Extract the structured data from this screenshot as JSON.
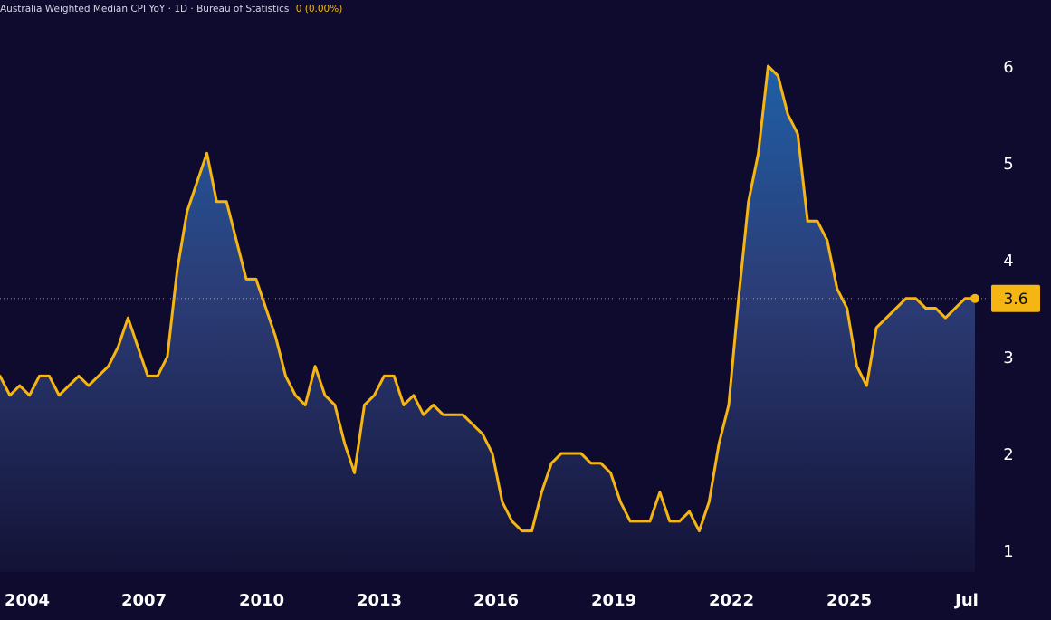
{
  "header": {
    "title": "Australia Weighted Median CPI YoY · 1D · Bureau of Statistics",
    "change": "0 (0.00%)"
  },
  "colors": {
    "background": "#0e0b2e",
    "line": "#f5b513",
    "area_top": "#1f5fa6",
    "area_bottom": "#131236",
    "badge": "#f5b513"
  },
  "chart_data": {
    "type": "area",
    "title": "Australia Weighted Median CPI YoY",
    "y_ticks": [
      1,
      2,
      3,
      4,
      5,
      6
    ],
    "x_ticks": [
      "2004",
      "2007",
      "2010",
      "2013",
      "2016",
      "2019",
      "2022",
      "2025",
      "Jul"
    ],
    "last_value_label": "3.6",
    "series": [
      {
        "x": [
          2003.0,
          2003.25,
          2003.5,
          2003.75,
          2004.0,
          2004.25,
          2004.5,
          2004.75,
          2005.0,
          2005.25,
          2005.5,
          2005.75,
          2006.0,
          2006.25,
          2006.5,
          2006.75,
          2007.0,
          2007.25,
          2007.5,
          2007.75,
          2008.0,
          2008.25,
          2008.5,
          2008.75,
          2009.0,
          2009.25,
          2009.5,
          2009.75,
          2010.0,
          2010.25,
          2010.5,
          2010.75,
          2011.0,
          2011.25,
          2011.5,
          2011.75,
          2012.0,
          2012.25,
          2012.5,
          2012.75,
          2013.0,
          2013.25,
          2013.5,
          2013.75,
          2014.0,
          2014.25,
          2014.5,
          2014.75,
          2015.0,
          2015.25,
          2015.5,
          2015.75,
          2016.0,
          2016.25,
          2016.5,
          2016.75,
          2017.0,
          2017.25,
          2017.5,
          2017.75,
          2018.0,
          2018.25,
          2018.5,
          2018.75,
          2019.0,
          2019.25,
          2019.5,
          2019.75,
          2020.0,
          2020.25,
          2020.5,
          2020.75,
          2021.0,
          2021.25,
          2021.5,
          2021.75,
          2022.0,
          2022.25,
          2022.5,
          2022.75,
          2023.0,
          2023.25,
          2023.5,
          2023.75,
          2024.0,
          2024.25,
          2024.5,
          2024.75,
          2025.0,
          2025.25,
          2025.5,
          2025.75,
          2026.0,
          2026.25,
          2026.5,
          2026.75,
          2027.0,
          2027.25,
          2027.5,
          2027.75
        ],
        "y": [
          2.8,
          2.6,
          2.7,
          2.6,
          2.8,
          2.8,
          2.6,
          2.7,
          2.8,
          2.7,
          2.8,
          2.9,
          3.1,
          3.4,
          3.1,
          2.8,
          2.8,
          3.0,
          3.9,
          4.5,
          4.8,
          5.1,
          4.6,
          4.6,
          4.2,
          3.8,
          3.8,
          3.5,
          3.2,
          2.8,
          2.6,
          2.5,
          2.9,
          2.6,
          2.5,
          2.1,
          1.8,
          2.5,
          2.6,
          2.8,
          2.8,
          2.5,
          2.6,
          2.4,
          2.5,
          2.4,
          2.4,
          2.4,
          2.3,
          2.2,
          2.0,
          1.5,
          1.3,
          1.2,
          1.2,
          1.6,
          1.9,
          2.0,
          2.0,
          2.0,
          1.9,
          1.9,
          1.8,
          1.5,
          1.3,
          1.3,
          1.3,
          1.6,
          1.3,
          1.3,
          1.4,
          1.2,
          1.5,
          2.1,
          2.5,
          3.6,
          4.6,
          5.1,
          6.0,
          5.9,
          5.5,
          5.3,
          4.4,
          4.4,
          4.2,
          3.7,
          3.5,
          2.9,
          2.7,
          3.3,
          3.4,
          3.5,
          3.6,
          3.6,
          3.5,
          3.5,
          3.4,
          3.5,
          3.6,
          3.6
        ]
      }
    ]
  }
}
